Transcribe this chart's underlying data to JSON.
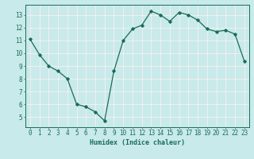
{
  "x": [
    0,
    1,
    2,
    3,
    4,
    5,
    6,
    7,
    8,
    9,
    10,
    11,
    12,
    13,
    14,
    15,
    16,
    17,
    18,
    19,
    20,
    21,
    22,
    23
  ],
  "y": [
    11.1,
    9.9,
    9.0,
    8.6,
    8.0,
    6.0,
    5.8,
    5.4,
    4.7,
    8.6,
    11.0,
    11.9,
    12.2,
    13.3,
    13.0,
    12.5,
    13.2,
    13.0,
    12.6,
    11.9,
    11.7,
    11.8,
    11.5,
    9.4
  ],
  "line_color": "#1a6b5a",
  "marker": "D",
  "marker_size": 1.8,
  "bg_color": "#c8eaea",
  "xlabel": "Humidex (Indice chaleur)",
  "xlabel_fontsize": 6,
  "tick_label_fontsize": 5.5,
  "ylim": [
    4.2,
    13.8
  ],
  "xlim": [
    -0.5,
    23.5
  ],
  "yticks": [
    5,
    6,
    7,
    8,
    9,
    10,
    11,
    12,
    13
  ],
  "xticks": [
    0,
    1,
    2,
    3,
    4,
    5,
    6,
    7,
    8,
    9,
    10,
    11,
    12,
    13,
    14,
    15,
    16,
    17,
    18,
    19,
    20,
    21,
    22,
    23
  ],
  "line_width": 0.9,
  "grid_major_color": "#ffffff",
  "grid_minor_color": "#ddf0f0",
  "spine_color": "#1a6b5a"
}
